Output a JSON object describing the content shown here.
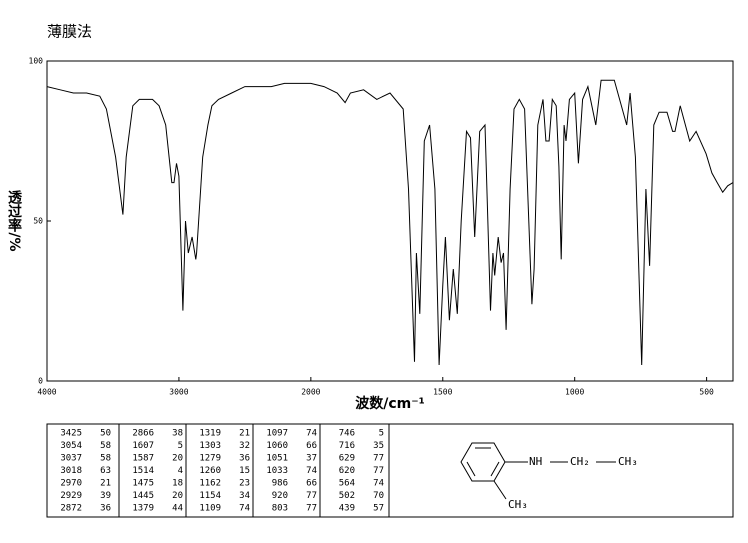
{
  "chart_data": {
    "type": "line",
    "title": "薄膜法",
    "xlabel": "波数/cm⁻¹",
    "ylabel": "透过率/%",
    "xlim": [
      4000,
      400
    ],
    "xscale_break": 2000,
    "ylim": [
      0,
      100
    ],
    "xticks": [
      4000,
      3000,
      2000,
      1500,
      1000,
      500
    ],
    "yticks": [
      0,
      50,
      100
    ],
    "color": "#000000",
    "x": [
      4000,
      3900,
      3800,
      3700,
      3600,
      3550,
      3480,
      3425,
      3400,
      3350,
      3300,
      3200,
      3150,
      3100,
      3054,
      3037,
      3018,
      3000,
      2970,
      2950,
      2929,
      2900,
      2872,
      2866,
      2820,
      2780,
      2750,
      2700,
      2600,
      2500,
      2400,
      2300,
      2200,
      2100,
      2000,
      1950,
      1900,
      1870,
      1850,
      1800,
      1750,
      1700,
      1650,
      1630,
      1607,
      1600,
      1587,
      1570,
      1550,
      1530,
      1514,
      1500,
      1490,
      1475,
      1460,
      1445,
      1430,
      1410,
      1395,
      1379,
      1360,
      1340,
      1319,
      1310,
      1303,
      1290,
      1279,
      1270,
      1260,
      1245,
      1230,
      1210,
      1190,
      1162,
      1154,
      1140,
      1120,
      1109,
      1097,
      1085,
      1070,
      1060,
      1051,
      1040,
      1033,
      1020,
      1000,
      986,
      970,
      950,
      920,
      900,
      850,
      803,
      790,
      770,
      746,
      730,
      716,
      700,
      680,
      650,
      629,
      620,
      600,
      564,
      540,
      502,
      480,
      460,
      439,
      420,
      400
    ],
    "values": [
      92,
      91,
      90,
      90,
      89,
      85,
      70,
      52,
      70,
      86,
      88,
      88,
      86,
      80,
      62,
      62,
      68,
      64,
      22,
      50,
      40,
      45,
      38,
      40,
      70,
      80,
      86,
      88,
      90,
      92,
      92,
      92,
      93,
      93,
      93,
      92,
      90,
      87,
      90,
      91,
      88,
      90,
      85,
      60,
      6,
      40,
      21,
      75,
      80,
      60,
      5,
      30,
      45,
      19,
      35,
      21,
      50,
      78,
      76,
      45,
      78,
      80,
      22,
      40,
      33,
      45,
      37,
      40,
      16,
      60,
      85,
      88,
      85,
      24,
      35,
      80,
      88,
      75,
      75,
      88,
      86,
      67,
      38,
      80,
      75,
      88,
      90,
      68,
      88,
      92,
      80,
      94,
      94,
      80,
      90,
      70,
      5,
      60,
      36,
      80,
      84,
      84,
      78,
      78,
      86,
      75,
      78,
      71,
      65,
      62,
      59,
      61,
      62
    ]
  },
  "peak_table": {
    "rows": [
      [
        3425,
        50,
        2866,
        38,
        1319,
        21,
        1097,
        74,
        746,
        5
      ],
      [
        3054,
        58,
        1607,
        5,
        1303,
        32,
        1060,
        66,
        716,
        35
      ],
      [
        3037,
        58,
        1587,
        20,
        1279,
        36,
        1051,
        37,
        629,
        77
      ],
      [
        3018,
        63,
        1514,
        4,
        1260,
        15,
        1033,
        74,
        620,
        77
      ],
      [
        2970,
        21,
        1475,
        18,
        1162,
        23,
        986,
        66,
        564,
        74
      ],
      [
        2929,
        39,
        1445,
        20,
        1154,
        34,
        920,
        77,
        502,
        70
      ],
      [
        2872,
        36,
        1379,
        44,
        1109,
        74,
        803,
        77,
        439,
        57
      ]
    ]
  },
  "structure": {
    "amine": "NH",
    "methylene": "CH₂",
    "methyl": "CH₃",
    "ring_methyl": "CH₃"
  }
}
